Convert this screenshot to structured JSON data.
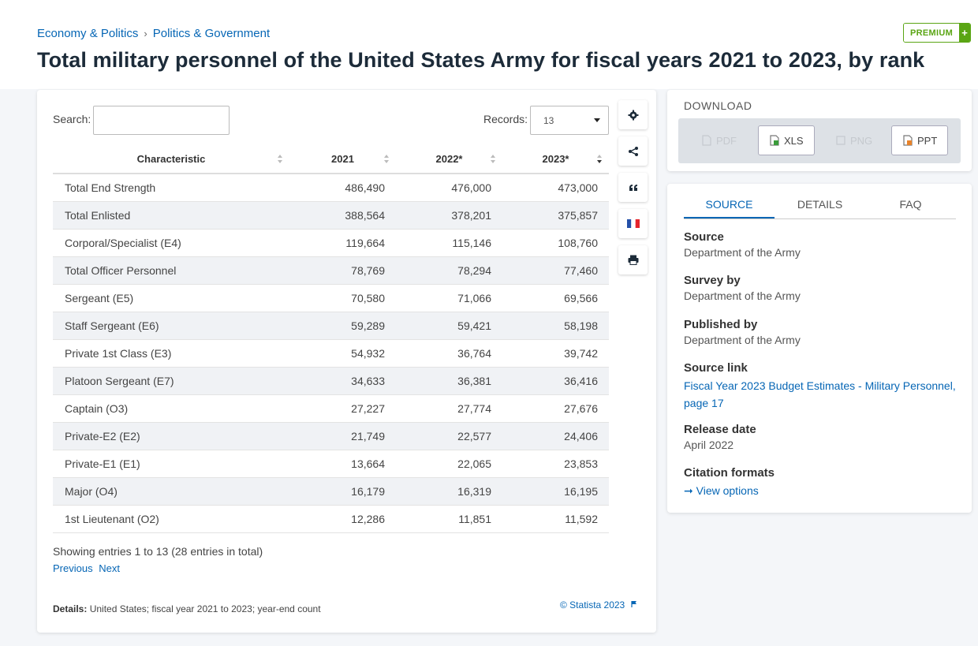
{
  "breadcrumb": {
    "item1": "Economy & Politics",
    "separator": "›",
    "item2": "Politics & Government"
  },
  "premium": {
    "label": "PREMIUM",
    "plus": "+"
  },
  "page_title": "Total military personnel of the United States Army for fiscal years 2021 to 2023, by rank",
  "table_controls": {
    "search_label": "Search:",
    "search_value": "",
    "records_label": "Records:",
    "records_value": "13"
  },
  "table": {
    "headers": [
      "Characteristic",
      "2021",
      "2022*",
      "2023*"
    ],
    "rows": [
      [
        "Total End Strength",
        "486,490",
        "476,000",
        "473,000"
      ],
      [
        "Total Enlisted",
        "388,564",
        "378,201",
        "375,857"
      ],
      [
        "Corporal/Specialist (E4)",
        "119,664",
        "115,146",
        "108,760"
      ],
      [
        "Total Officer Personnel",
        "78,769",
        "78,294",
        "77,460"
      ],
      [
        "Sergeant (E5)",
        "70,580",
        "71,066",
        "69,566"
      ],
      [
        "Staff Sergeant (E6)",
        "59,289",
        "59,421",
        "58,198"
      ],
      [
        "Private 1st Class (E3)",
        "54,932",
        "36,764",
        "39,742"
      ],
      [
        "Platoon Sergeant (E7)",
        "34,633",
        "36,381",
        "36,416"
      ],
      [
        "Captain (O3)",
        "27,227",
        "27,774",
        "27,676"
      ],
      [
        "Private-E2 (E2)",
        "21,749",
        "22,577",
        "24,406"
      ],
      [
        "Private-E1 (E1)",
        "13,664",
        "22,065",
        "23,853"
      ],
      [
        "Major (O4)",
        "16,179",
        "16,319",
        "16,195"
      ],
      [
        "1st Lieutenant (O2)",
        "12,286",
        "11,851",
        "11,592"
      ]
    ]
  },
  "footer": {
    "showing": "Showing entries 1 to 13 (28 entries in total)",
    "previous": "Previous",
    "next": "Next",
    "details_label": "Details:",
    "details_text": "United States; fiscal year 2021 to 2023; year-end count",
    "copyright": "© Statista 2023"
  },
  "side_tools": [
    "settings-icon",
    "share-icon",
    "quote-icon",
    "french-flag-icon",
    "print-icon"
  ],
  "download": {
    "title": "DOWNLOAD",
    "buttons": [
      {
        "label": "PDF",
        "enabled": false
      },
      {
        "label": "XLS",
        "enabled": true
      },
      {
        "label": "PNG",
        "enabled": false
      },
      {
        "label": "PPT",
        "enabled": true
      }
    ]
  },
  "source_panel": {
    "tabs": [
      "SOURCE",
      "DETAILS",
      "FAQ"
    ],
    "active_tab": "SOURCE",
    "source_label": "Source",
    "source_value": "Department of the Army",
    "survey_label": "Survey by",
    "survey_value": "Department of the Army",
    "published_label": "Published by",
    "published_value": "Department of the Army",
    "link_label": "Source link",
    "link_value": "Fiscal Year 2023 Budget Estimates - Military Personnel, page 17",
    "release_label": "Release date",
    "release_value": "April 2022",
    "citation_label": "Citation formats",
    "citation_arrow": "➞",
    "citation_value": "View options"
  },
  "colors": {
    "brand_blue": "#0666b5",
    "premium_green": "#5aa514",
    "title_navy": "#1c2b39"
  }
}
